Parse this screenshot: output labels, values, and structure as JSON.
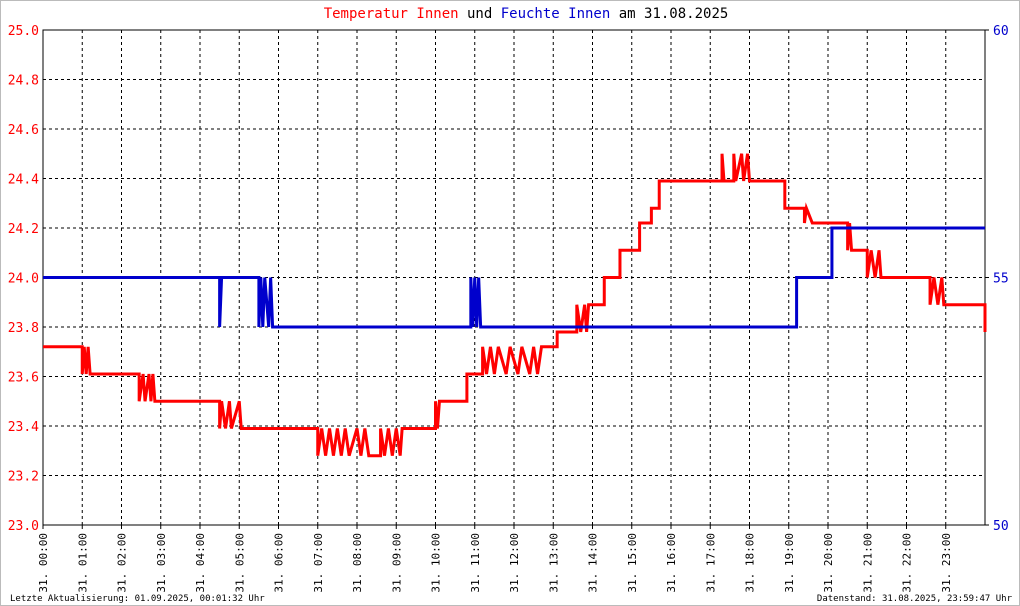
{
  "chart_data": {
    "type": "line",
    "title": [
      {
        "text": "Temperatur Innen",
        "color": "#ff0000"
      },
      {
        "text": "und",
        "color": "#000000"
      },
      {
        "text": "Feuchte Innen",
        "color": "#0000cc"
      },
      {
        "text": "am 31.08.2025",
        "color": "#000000"
      }
    ],
    "xlim": [
      0,
      24
    ],
    "xticks": [
      {
        "value": 0,
        "label": "31. 00:00"
      },
      {
        "value": 1,
        "label": "31. 01:00"
      },
      {
        "value": 2,
        "label": "31. 02:00"
      },
      {
        "value": 3,
        "label": "31. 03:00"
      },
      {
        "value": 4,
        "label": "31. 04:00"
      },
      {
        "value": 5,
        "label": "31. 05:00"
      },
      {
        "value": 6,
        "label": "31. 06:00"
      },
      {
        "value": 7,
        "label": "31. 07:00"
      },
      {
        "value": 8,
        "label": "31. 08:00"
      },
      {
        "value": 9,
        "label": "31. 09:00"
      },
      {
        "value": 10,
        "label": "31. 10:00"
      },
      {
        "value": 11,
        "label": "31. 11:00"
      },
      {
        "value": 12,
        "label": "31. 12:00"
      },
      {
        "value": 13,
        "label": "31. 13:00"
      },
      {
        "value": 14,
        "label": "31. 14:00"
      },
      {
        "value": 15,
        "label": "31. 15:00"
      },
      {
        "value": 16,
        "label": "31. 16:00"
      },
      {
        "value": 17,
        "label": "31. 17:00"
      },
      {
        "value": 18,
        "label": "31. 18:00"
      },
      {
        "value": 19,
        "label": "31. 19:00"
      },
      {
        "value": 20,
        "label": "31. 20:00"
      },
      {
        "value": 21,
        "label": "31. 21:00"
      },
      {
        "value": 22,
        "label": "31. 22:00"
      },
      {
        "value": 23,
        "label": "31. 23:00"
      }
    ],
    "ylim": [
      23,
      25
    ],
    "yticks": [
      {
        "value": 23,
        "label": "23.0"
      },
      23.2,
      23.4,
      23.6,
      23.8,
      {
        "value": 24,
        "label": "24.0"
      },
      24.2,
      24.4,
      24.6,
      24.8,
      {
        "value": 25,
        "label": "25.0"
      }
    ],
    "y2lim": [
      50,
      60
    ],
    "y2ticks": [
      50,
      55,
      60
    ],
    "grid": true,
    "series": [
      {
        "name": "Temperatur Innen",
        "color": "#ff0000",
        "x": [
          0,
          1.0,
          1.0,
          1.05,
          1.1,
          1.15,
          1.2,
          2.45,
          2.45,
          2.55,
          2.6,
          2.7,
          2.75,
          2.8,
          2.85,
          4.5,
          4.5,
          4.55,
          4.65,
          4.75,
          4.8,
          5.0,
          5.05,
          7.0,
          7.0,
          7.1,
          7.2,
          7.3,
          7.4,
          7.5,
          7.6,
          7.7,
          7.8,
          8.0,
          8.1,
          8.2,
          8.3,
          8.6,
          8.6,
          8.7,
          8.8,
          8.9,
          9.0,
          9.1,
          9.15,
          10.0,
          10.0,
          10.05,
          10.1,
          10.8,
          10.8,
          11.2,
          11.2,
          11.3,
          11.4,
          11.5,
          11.6,
          11.8,
          11.9,
          12.1,
          12.2,
          12.4,
          12.5,
          12.6,
          12.7,
          13.1,
          13.1,
          13.6,
          13.6,
          13.7,
          13.8,
          13.85,
          13.9,
          14.3,
          14.3,
          14.7,
          14.7,
          15.2,
          15.2,
          15.5,
          15.5,
          15.7,
          15.7,
          17.3,
          17.3,
          17.35,
          17.6,
          17.6,
          17.65,
          17.8,
          17.85,
          17.95,
          18.0,
          18.9,
          18.9,
          19.4,
          19.4,
          19.45,
          19.6,
          20.5,
          20.5,
          20.55,
          20.6,
          21.0,
          21.0,
          21.1,
          21.2,
          21.3,
          21.35,
          22.6,
          22.6,
          22.7,
          22.8,
          22.9,
          22.95,
          24.0,
          24.0
        ],
        "values": [
          23.72,
          23.72,
          23.61,
          23.72,
          23.61,
          23.72,
          23.61,
          23.61,
          23.5,
          23.61,
          23.5,
          23.61,
          23.5,
          23.61,
          23.5,
          23.5,
          23.39,
          23.5,
          23.39,
          23.5,
          23.39,
          23.5,
          23.39,
          23.39,
          23.28,
          23.39,
          23.28,
          23.39,
          23.28,
          23.39,
          23.28,
          23.39,
          23.28,
          23.39,
          23.28,
          23.39,
          23.28,
          23.28,
          23.39,
          23.28,
          23.39,
          23.28,
          23.39,
          23.28,
          23.39,
          23.39,
          23.5,
          23.39,
          23.5,
          23.5,
          23.61,
          23.61,
          23.72,
          23.61,
          23.72,
          23.61,
          23.72,
          23.61,
          23.72,
          23.61,
          23.72,
          23.61,
          23.72,
          23.61,
          23.72,
          23.72,
          23.78,
          23.78,
          23.89,
          23.78,
          23.89,
          23.78,
          23.89,
          23.89,
          24.0,
          24.0,
          24.11,
          24.11,
          24.22,
          24.22,
          24.28,
          24.28,
          24.39,
          24.39,
          24.5,
          24.39,
          24.39,
          24.5,
          24.39,
          24.5,
          24.39,
          24.5,
          24.39,
          24.39,
          24.28,
          24.28,
          24.22,
          24.28,
          24.22,
          24.22,
          24.11,
          24.22,
          24.11,
          24.11,
          24.0,
          24.11,
          24.0,
          24.11,
          24.0,
          24.0,
          23.89,
          24.0,
          23.89,
          24.0,
          23.89,
          23.89,
          23.78
        ]
      },
      {
        "name": "Feuchte Innen",
        "color": "#0000cc",
        "axis": "y2",
        "x": [
          0,
          4.5,
          4.5,
          4.55,
          5.5,
          5.5,
          5.55,
          5.6,
          5.65,
          5.75,
          5.8,
          5.85,
          10.9,
          10.9,
          10.95,
          11.0,
          11.05,
          11.1,
          11.15,
          19.2,
          19.2,
          20.1,
          20.1,
          24
        ],
        "values": [
          55,
          55,
          54,
          55,
          55,
          54,
          55,
          54,
          55,
          54,
          55,
          54,
          54,
          55,
          54,
          55,
          54,
          55,
          54,
          54,
          55,
          55,
          56,
          56
        ]
      }
    ],
    "footer_left": "Letzte Aktualisierung: 01.09.2025, 00:01:32 Uhr",
    "footer_right": "Datenstand: 31.08.2025, 23:59:47 Uhr"
  }
}
